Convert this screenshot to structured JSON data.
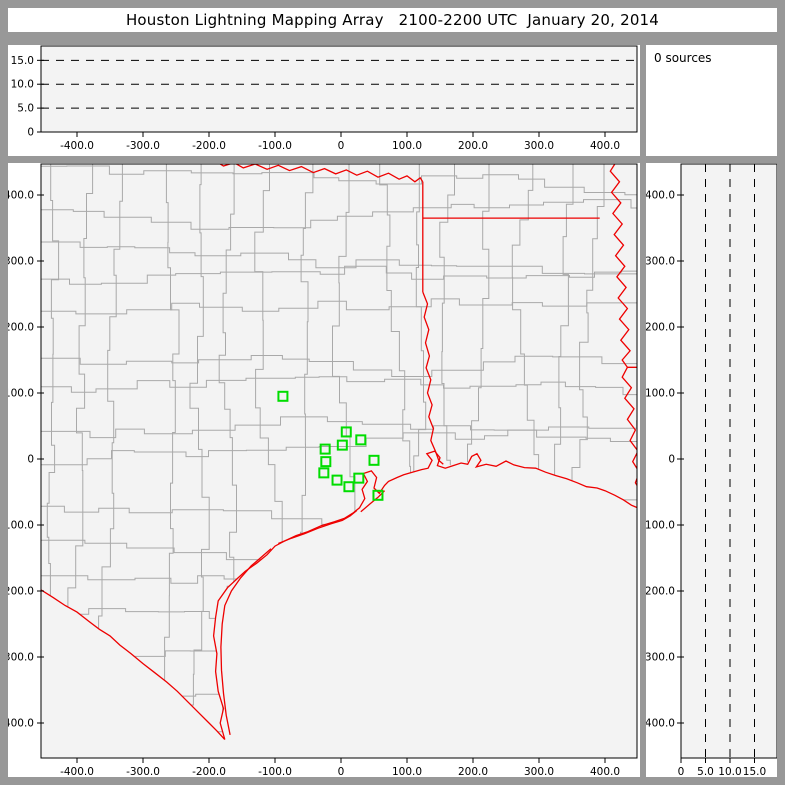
{
  "title_bar": {
    "title": "Houston Lightning Mapping Array   2100-2200 UTC  January 20, 2014"
  },
  "sources_panel": {
    "label": "0 sources"
  },
  "colors": {
    "window_frame": "#989898",
    "panel_bg": "#ffffff",
    "plot_bg": "#f3f3f3",
    "axis": "#000000",
    "county_line": "#a9a9a9",
    "state_border_red": "#ee0000",
    "station_green": "#00dd00",
    "dashed_line": "#000000"
  },
  "alt_axis": {
    "ticks": [
      {
        "v": 0,
        "label": "0"
      },
      {
        "v": 5,
        "label": "5.0"
      },
      {
        "v": 10,
        "label": "10.0"
      },
      {
        "v": 15,
        "label": "15.0"
      }
    ],
    "dashed_levels": [
      5,
      10,
      15
    ],
    "max": 18
  },
  "ew_axis": {
    "ticks": [
      {
        "v": -400,
        "label": "-400.0"
      },
      {
        "v": -300,
        "label": "-300.0"
      },
      {
        "v": -200,
        "label": "-200.0"
      },
      {
        "v": -100,
        "label": "-100.0"
      },
      {
        "v": 0,
        "label": "0"
      },
      {
        "v": 100,
        "label": "100.0"
      },
      {
        "v": 200,
        "label": "200.0"
      },
      {
        "v": 300,
        "label": "300.0"
      },
      {
        "v": 400,
        "label": "400.0"
      }
    ],
    "range_km": [
      -454,
      448
    ]
  },
  "ns_axis": {
    "ticks": [
      {
        "v": 400,
        "label": "400.0"
      },
      {
        "v": 300,
        "label": "300.0"
      },
      {
        "v": 200,
        "label": "200.0"
      },
      {
        "v": 100,
        "label": "100.0"
      },
      {
        "v": 0,
        "label": "0"
      },
      {
        "v": -100,
        "label": "-100.0"
      },
      {
        "v": -200,
        "label": "-200.0"
      },
      {
        "v": -300,
        "label": "-300.0"
      },
      {
        "v": -400,
        "label": "-400.0"
      }
    ],
    "range_km": [
      -451,
      447
    ]
  },
  "stations_km": [
    [
      -88,
      95
    ],
    [
      8,
      41
    ],
    [
      30,
      29
    ],
    [
      2,
      21
    ],
    [
      -24,
      15
    ],
    [
      -23,
      -4
    ],
    [
      50,
      -2
    ],
    [
      -26,
      -21
    ],
    [
      -6,
      -32
    ],
    [
      27,
      -29
    ],
    [
      12,
      -42
    ],
    [
      56,
      -55
    ]
  ],
  "counties": {
    "seed": 11,
    "spacing": 56
  },
  "geo": {
    "land": [
      [
        -455,
        450
      ],
      [
        460,
        450
      ],
      [
        460,
        -78
      ],
      [
        452,
        -75
      ],
      [
        440,
        -70
      ],
      [
        428,
        -62
      ],
      [
        415,
        -55
      ],
      [
        400,
        -48
      ],
      [
        388,
        -44
      ],
      [
        372,
        -42
      ],
      [
        358,
        -36
      ],
      [
        342,
        -30
      ],
      [
        325,
        -25
      ],
      [
        310,
        -20
      ],
      [
        295,
        -14
      ],
      [
        278,
        -13
      ],
      [
        262,
        -9
      ],
      [
        250,
        -3
      ],
      [
        235,
        -11
      ],
      [
        220,
        -5
      ],
      [
        205,
        -10
      ],
      [
        190,
        -4
      ],
      [
        175,
        -13
      ],
      [
        162,
        -8
      ],
      [
        155,
        -8
      ],
      [
        148,
        -2
      ],
      [
        138,
        -9
      ],
      [
        122,
        -16
      ],
      [
        108,
        -20
      ],
      [
        95,
        -24
      ],
      [
        85,
        -28
      ],
      [
        72,
        -34
      ],
      [
        66,
        -40
      ],
      [
        58,
        -52
      ],
      [
        50,
        -44
      ],
      [
        54,
        -28
      ],
      [
        46,
        -18
      ],
      [
        34,
        -22
      ],
      [
        40,
        -34
      ],
      [
        32,
        -46
      ],
      [
        36,
        -60
      ],
      [
        28,
        -74
      ],
      [
        18,
        -82
      ],
      [
        5,
        -90
      ],
      [
        -10,
        -95
      ],
      [
        -30,
        -101
      ],
      [
        -50,
        -110
      ],
      [
        -68,
        -116
      ],
      [
        -85,
        -124
      ],
      [
        -100,
        -132
      ],
      [
        -112,
        -145
      ],
      [
        -128,
        -158
      ],
      [
        -145,
        -170
      ],
      [
        -158,
        -182
      ],
      [
        -172,
        -195
      ],
      [
        -186,
        -215
      ],
      [
        -190,
        -240
      ],
      [
        -193,
        -268
      ],
      [
        -188,
        -295
      ],
      [
        -190,
        -322
      ],
      [
        -186,
        -352
      ],
      [
        -178,
        -378
      ],
      [
        -183,
        -400
      ],
      [
        -176,
        -425
      ],
      [
        -188,
        -412
      ],
      [
        -200,
        -400
      ],
      [
        -216,
        -384
      ],
      [
        -232,
        -368
      ],
      [
        -248,
        -352
      ],
      [
        -264,
        -338
      ],
      [
        -282,
        -324
      ],
      [
        -300,
        -310
      ],
      [
        -318,
        -295
      ],
      [
        -335,
        -282
      ],
      [
        -350,
        -268
      ],
      [
        -366,
        -258
      ],
      [
        -382,
        -246
      ],
      [
        -400,
        -232
      ],
      [
        -418,
        -222
      ],
      [
        -436,
        -210
      ],
      [
        -455,
        -198
      ]
    ],
    "coast": [
      [
        -176,
        -425
      ],
      [
        -183,
        -400
      ],
      [
        -178,
        -378
      ],
      [
        -186,
        -352
      ],
      [
        -190,
        -322
      ],
      [
        -188,
        -295
      ],
      [
        -193,
        -268
      ],
      [
        -190,
        -240
      ],
      [
        -186,
        -215
      ],
      [
        -172,
        -195
      ],
      [
        -158,
        -182
      ],
      [
        -145,
        -170
      ],
      [
        -128,
        -158
      ],
      [
        -112,
        -145
      ],
      [
        -100,
        -132
      ],
      [
        -85,
        -124
      ],
      [
        -68,
        -116
      ],
      [
        -50,
        -110
      ],
      [
        -30,
        -101
      ],
      [
        -10,
        -95
      ],
      [
        5,
        -90
      ],
      [
        18,
        -82
      ],
      [
        28,
        -74
      ],
      [
        36,
        -60
      ],
      [
        32,
        -46
      ],
      [
        40,
        -34
      ],
      [
        34,
        -22
      ],
      [
        46,
        -18
      ],
      [
        54,
        -28
      ],
      [
        50,
        -44
      ],
      [
        58,
        -52
      ],
      [
        66,
        -40
      ],
      [
        72,
        -34
      ],
      [
        85,
        -28
      ],
      [
        95,
        -24
      ],
      [
        108,
        -20
      ],
      [
        122,
        -16
      ],
      [
        132,
        -14
      ],
      [
        138,
        -2
      ],
      [
        130,
        8
      ],
      [
        142,
        12
      ],
      [
        150,
        2
      ],
      [
        146,
        -10
      ],
      [
        158,
        -14
      ],
      [
        170,
        -10
      ],
      [
        182,
        -6
      ],
      [
        192,
        -8
      ],
      [
        198,
        4
      ],
      [
        206,
        8
      ],
      [
        212,
        -2
      ],
      [
        205,
        -12
      ],
      [
        220,
        -8
      ],
      [
        235,
        -11
      ],
      [
        250,
        -3
      ],
      [
        262,
        -9
      ],
      [
        278,
        -13
      ],
      [
        295,
        -14
      ],
      [
        310,
        -20
      ],
      [
        325,
        -25
      ],
      [
        342,
        -30
      ],
      [
        358,
        -36
      ],
      [
        372,
        -42
      ],
      [
        388,
        -44
      ],
      [
        400,
        -48
      ],
      [
        415,
        -55
      ],
      [
        428,
        -62
      ],
      [
        440,
        -70
      ],
      [
        452,
        -75
      ],
      [
        460,
        -78
      ]
    ],
    "barrier_padre": [
      [
        -168,
        -418
      ],
      [
        -174,
        -388
      ],
      [
        -178,
        -355
      ],
      [
        -181,
        -320
      ],
      [
        -182,
        -285
      ],
      [
        -180,
        -250
      ],
      [
        -176,
        -222
      ],
      [
        -166,
        -200
      ],
      [
        -152,
        -180
      ],
      [
        -136,
        -162
      ],
      [
        -120,
        -148
      ],
      [
        -106,
        -136
      ]
    ],
    "barrier_matagorda": [
      [
        -95,
        -128
      ],
      [
        -75,
        -120
      ],
      [
        -55,
        -113
      ],
      [
        -35,
        -105
      ],
      [
        -15,
        -98
      ],
      [
        2,
        -93
      ],
      [
        14,
        -86
      ],
      [
        24,
        -78
      ]
    ],
    "barrier_galveston": [
      [
        30,
        -80
      ],
      [
        44,
        -68
      ],
      [
        56,
        -58
      ],
      [
        66,
        -48
      ]
    ],
    "rio_grande": [
      [
        -455,
        -198
      ],
      [
        -436,
        -210
      ],
      [
        -418,
        -222
      ],
      [
        -400,
        -232
      ],
      [
        -382,
        -246
      ],
      [
        -366,
        -258
      ],
      [
        -350,
        -268
      ],
      [
        -335,
        -282
      ],
      [
        -318,
        -295
      ],
      [
        -300,
        -310
      ],
      [
        -282,
        -324
      ],
      [
        -264,
        -338
      ],
      [
        -248,
        -352
      ],
      [
        -232,
        -368
      ],
      [
        -216,
        -384
      ],
      [
        -200,
        -400
      ],
      [
        -188,
        -412
      ],
      [
        -176,
        -425
      ]
    ],
    "red_river": [
      [
        -191,
        452
      ],
      [
        -178,
        444
      ],
      [
        -162,
        449
      ],
      [
        -148,
        441
      ],
      [
        -130,
        447
      ],
      [
        -112,
        439
      ],
      [
        -95,
        445
      ],
      [
        -78,
        437
      ],
      [
        -60,
        443
      ],
      [
        -42,
        434
      ],
      [
        -25,
        440
      ],
      [
        -8,
        432
      ],
      [
        8,
        438
      ],
      [
        24,
        430
      ],
      [
        40,
        436
      ],
      [
        56,
        427
      ],
      [
        72,
        433
      ],
      [
        88,
        424
      ],
      [
        100,
        429
      ],
      [
        112,
        420
      ],
      [
        120,
        426
      ],
      [
        124,
        420
      ]
    ],
    "vertical_94w": [
      [
        124,
        420
      ],
      [
        124,
        253
      ]
    ],
    "ar_la_33n": [
      [
        124,
        365
      ],
      [
        392,
        365
      ]
    ],
    "la_ms_31n": [
      [
        434,
        139
      ],
      [
        460,
        139
      ]
    ],
    "tx_la": [
      [
        124,
        253
      ],
      [
        131,
        235
      ],
      [
        126,
        215
      ],
      [
        133,
        196
      ],
      [
        128,
        176
      ],
      [
        134,
        156
      ],
      [
        129,
        138
      ],
      [
        136,
        120
      ],
      [
        131,
        100
      ],
      [
        138,
        82
      ],
      [
        133,
        64
      ],
      [
        140,
        46
      ],
      [
        136,
        28
      ],
      [
        143,
        12
      ],
      [
        148,
        -2
      ],
      [
        155,
        -8
      ]
    ],
    "mississippi": [
      [
        418,
        452
      ],
      [
        408,
        436
      ],
      [
        422,
        420
      ],
      [
        410,
        404
      ],
      [
        424,
        388
      ],
      [
        412,
        372
      ],
      [
        426,
        356
      ],
      [
        414,
        340
      ],
      [
        428,
        324
      ],
      [
        416,
        308
      ],
      [
        430,
        292
      ],
      [
        418,
        276
      ],
      [
        432,
        260
      ],
      [
        420,
        244
      ],
      [
        434,
        228
      ],
      [
        422,
        212
      ],
      [
        436,
        196
      ],
      [
        424,
        180
      ],
      [
        438,
        164
      ],
      [
        426,
        150
      ],
      [
        434,
        139
      ],
      [
        426,
        124
      ],
      [
        440,
        108
      ],
      [
        430,
        92
      ],
      [
        444,
        76
      ],
      [
        434,
        60
      ],
      [
        446,
        44
      ],
      [
        438,
        28
      ],
      [
        450,
        12
      ],
      [
        442,
        -4
      ],
      [
        452,
        -20
      ],
      [
        446,
        -36
      ],
      [
        456,
        -52
      ],
      [
        450,
        -66
      ],
      [
        458,
        -78
      ]
    ]
  },
  "chart_data": {
    "type": "scatter",
    "title": "Houston Lightning Mapping Array   2100-2200 UTC  January 20, 2014",
    "source_count": 0,
    "lightning_points": [],
    "panels": [
      {
        "name": "altitude-vs-east-west",
        "xlabel_ticks": [
          "-400.0",
          "-300.0",
          "-200.0",
          "-100.0",
          "0",
          "100.0",
          "200.0",
          "300.0",
          "400.0"
        ],
        "ylabel_ticks": [
          "0",
          "5.0",
          "10.0",
          "15.0"
        ],
        "xlim": [
          -454,
          448
        ],
        "ylim": [
          0,
          18
        ],
        "gridlines_dashed_at": [
          5,
          10,
          15
        ]
      },
      {
        "name": "plan-view-map",
        "xlim": [
          -454,
          448
        ],
        "ylim": [
          -451,
          447
        ],
        "station_markers_km": [
          [
            -88,
            95
          ],
          [
            8,
            41
          ],
          [
            30,
            29
          ],
          [
            2,
            21
          ],
          [
            -24,
            15
          ],
          [
            -23,
            -4
          ],
          [
            50,
            -2
          ],
          [
            -26,
            -21
          ],
          [
            -6,
            -32
          ],
          [
            27,
            -29
          ],
          [
            12,
            -42
          ],
          [
            56,
            -55
          ]
        ]
      },
      {
        "name": "altitude-vs-north-south",
        "xlabel_ticks": [
          "0",
          "5.0",
          "10.0",
          "15.0"
        ],
        "ylabel_ticks": [
          "400.0",
          "300.0",
          "200.0",
          "100.0",
          "0",
          "-100.0",
          "-200.0",
          "-300.0",
          "-400.0"
        ],
        "xlim": [
          0,
          19
        ],
        "ylim": [
          -451,
          447
        ],
        "gridlines_dashed_at": [
          5,
          10,
          15
        ]
      }
    ]
  }
}
